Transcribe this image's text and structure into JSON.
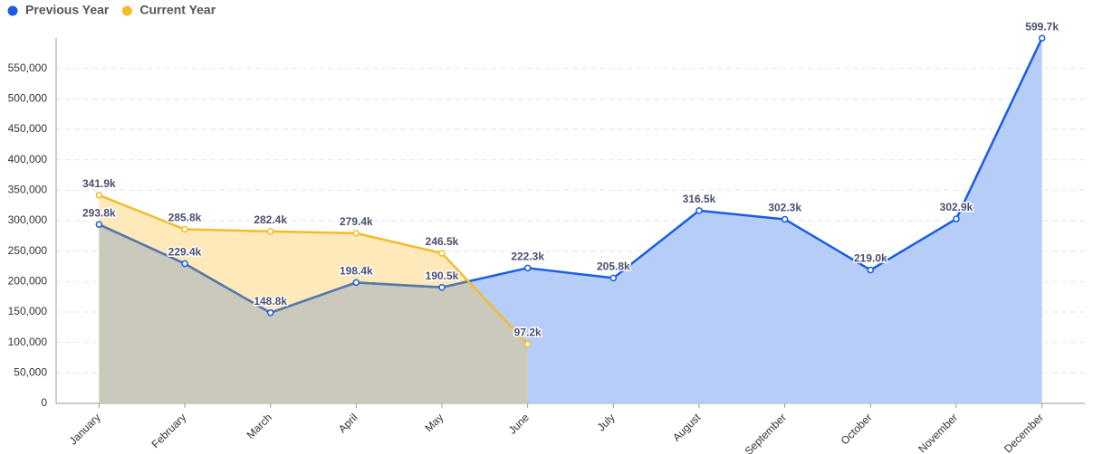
{
  "chart_data": {
    "type": "line",
    "categories": [
      "January",
      "February",
      "March",
      "April",
      "May",
      "June",
      "July",
      "August",
      "September",
      "October",
      "November",
      "December"
    ],
    "series": [
      {
        "name": "Previous Year",
        "color": "#1a5ce6",
        "fill": "#b6cdf7",
        "values": [
          293800,
          229400,
          148800,
          198400,
          190500,
          222300,
          205800,
          316500,
          302300,
          219000,
          302900,
          599700
        ],
        "value_labels": [
          "293.8k",
          "229.4k",
          "148.8k",
          "198.4k",
          "190.5k",
          "222.3k",
          "205.8k",
          "316.5k",
          "302.3k",
          "219.0k",
          "302.9k",
          "599.7k"
        ]
      },
      {
        "name": "Current Year",
        "color": "#f4bc2c",
        "fill": "#fde9b9",
        "values": [
          341900,
          285800,
          282400,
          279400,
          246500,
          97200,
          null,
          null,
          null,
          null,
          null,
          null
        ],
        "value_labels": [
          "341.9k",
          "285.8k",
          "282.4k",
          "279.4k",
          "246.5k",
          "97.2k",
          null,
          null,
          null,
          null,
          null,
          null
        ]
      }
    ],
    "ylim": [
      0,
      600000
    ],
    "yticks": [
      0,
      {
        "value": 50000,
        "label": "50,000"
      },
      {
        "value": 100000,
        "label": "100,000"
      },
      {
        "value": 150000,
        "label": "150,000"
      },
      {
        "value": 200000,
        "label": "200,000"
      },
      {
        "value": 250000,
        "label": "250,000"
      },
      {
        "value": 300000,
        "label": "300,000"
      },
      {
        "value": 350000,
        "label": "350,000"
      },
      {
        "value": 400000,
        "label": "400,000"
      },
      {
        "value": 450000,
        "label": "450,000"
      },
      {
        "value": 500000,
        "label": "500,000"
      },
      {
        "value": 550000,
        "label": "550,000"
      }
    ],
    "grid": true,
    "area": true,
    "legend": "top-left"
  }
}
